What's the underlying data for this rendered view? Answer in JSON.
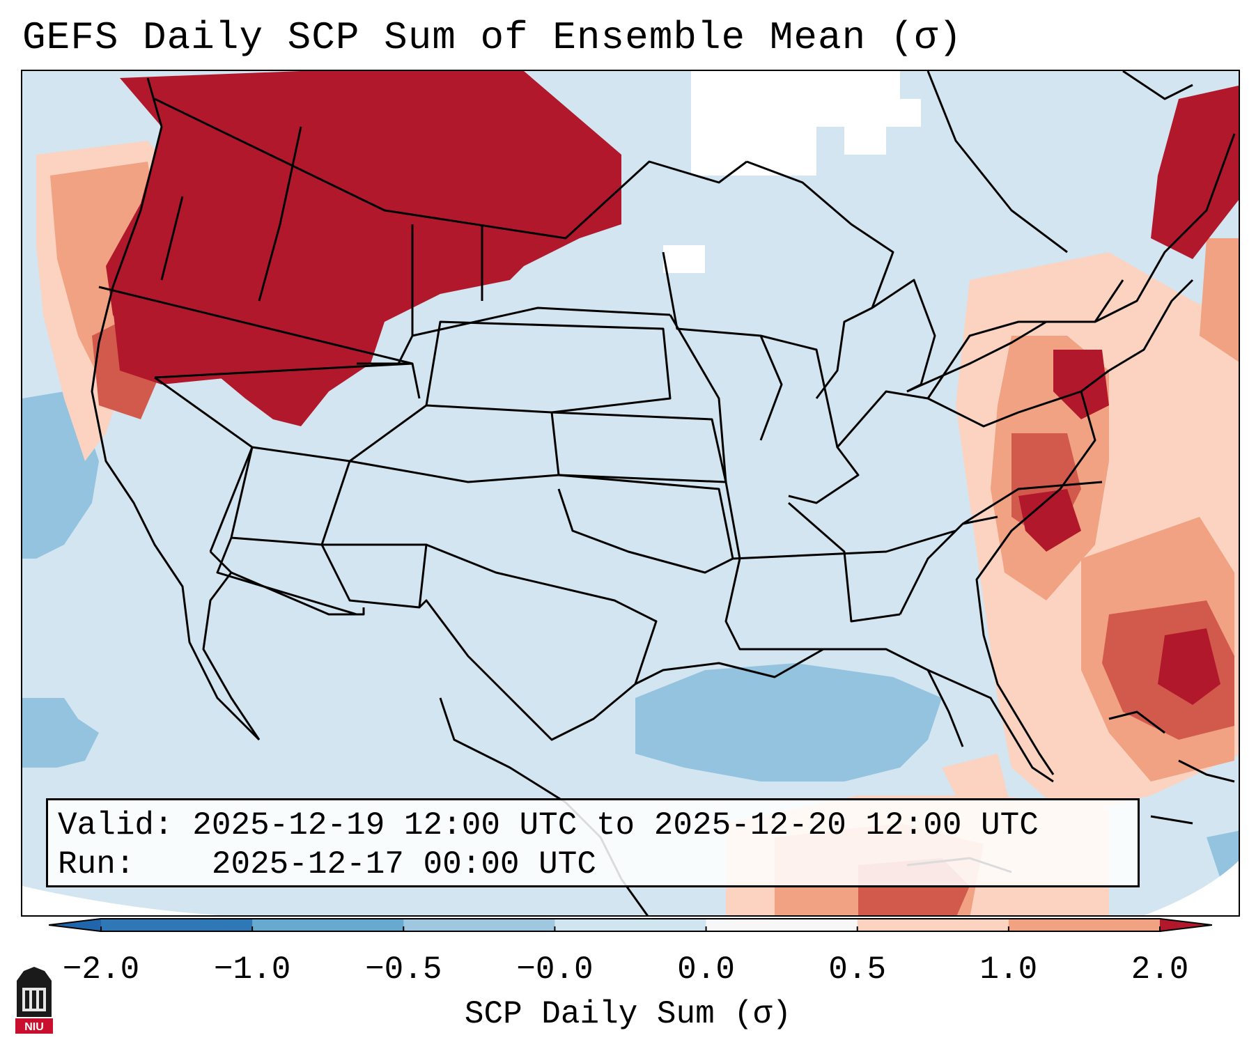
{
  "title": "GEFS Daily SCP Sum of Ensemble Mean (σ)",
  "info": {
    "valid_label": "Valid:",
    "valid_value": "2025-12-19 12:00 UTC to 2025-12-20 12:00 UTC",
    "run_label": "Run:  ",
    "run_value": "2025-12-17 00:00 UTC"
  },
  "colorbar": {
    "label": "SCP Daily Sum (σ)",
    "ticks": [
      "−2.0",
      "−1.0",
      "−0.5",
      "−0.0",
      "0.0",
      "0.5",
      "1.0",
      "2.0"
    ],
    "colors": [
      "#2e79b5",
      "#67a9cf",
      "#9fc7e0",
      "#d1e5f0",
      "#f7f7f7",
      "#fbd3c0",
      "#f0a283",
      "#d25a4c",
      "#b2182b"
    ],
    "under_color": "#2166ac",
    "over_color": "#b2182b"
  },
  "logo": {
    "text": "NIU",
    "color": "#c8102e"
  }
}
